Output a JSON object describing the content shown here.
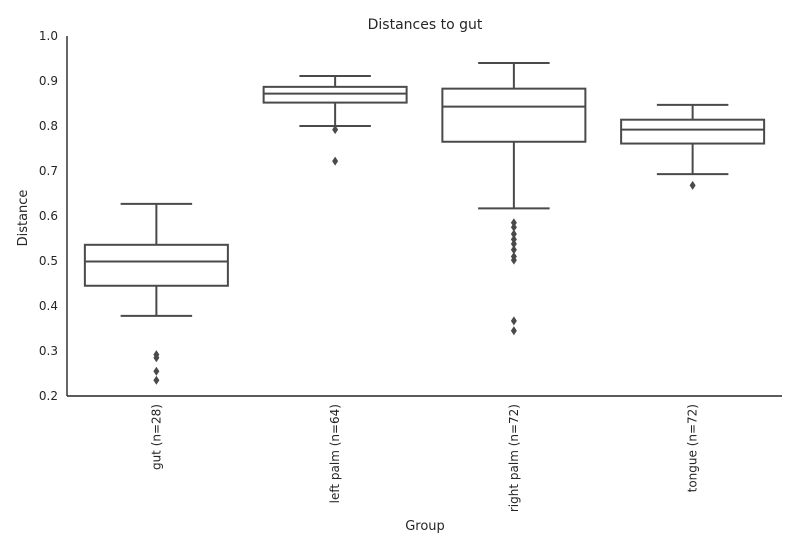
{
  "chart_data": {
    "type": "box",
    "title": "Distances to gut",
    "xlabel": "Group",
    "ylabel": "Distance",
    "ylim": [
      0.2,
      1.0
    ],
    "yticks": [
      "0.2",
      "0.3",
      "0.4",
      "0.5",
      "0.6",
      "0.7",
      "0.8",
      "0.9",
      "1.0"
    ],
    "grid": false,
    "categories": [
      "gut (n=28)",
      "left palm (n=64)",
      "right palm (n=72)",
      "tongue (n=72)"
    ],
    "boxes": [
      {
        "whisker_low": 0.378,
        "q1": 0.445,
        "median": 0.499,
        "q3": 0.536,
        "whisker_high": 0.627,
        "fliers": [
          0.292,
          0.285,
          0.255,
          0.235
        ]
      },
      {
        "whisker_low": 0.8,
        "q1": 0.852,
        "median": 0.872,
        "q3": 0.887,
        "whisker_high": 0.911,
        "fliers": [
          0.792,
          0.722
        ]
      },
      {
        "whisker_low": 0.617,
        "q1": 0.765,
        "median": 0.843,
        "q3": 0.883,
        "whisker_high": 0.94,
        "fliers": [
          0.585,
          0.575,
          0.56,
          0.548,
          0.538,
          0.525,
          0.51,
          0.502,
          0.367,
          0.345
        ]
      },
      {
        "whisker_low": 0.693,
        "q1": 0.761,
        "median": 0.792,
        "q3": 0.814,
        "whisker_high": 0.847,
        "fliers": [
          0.668
        ]
      }
    ],
    "colors": {
      "box_edge": "#4a4a4a",
      "box_fill": "#ffffff",
      "axis": "#262626"
    }
  }
}
